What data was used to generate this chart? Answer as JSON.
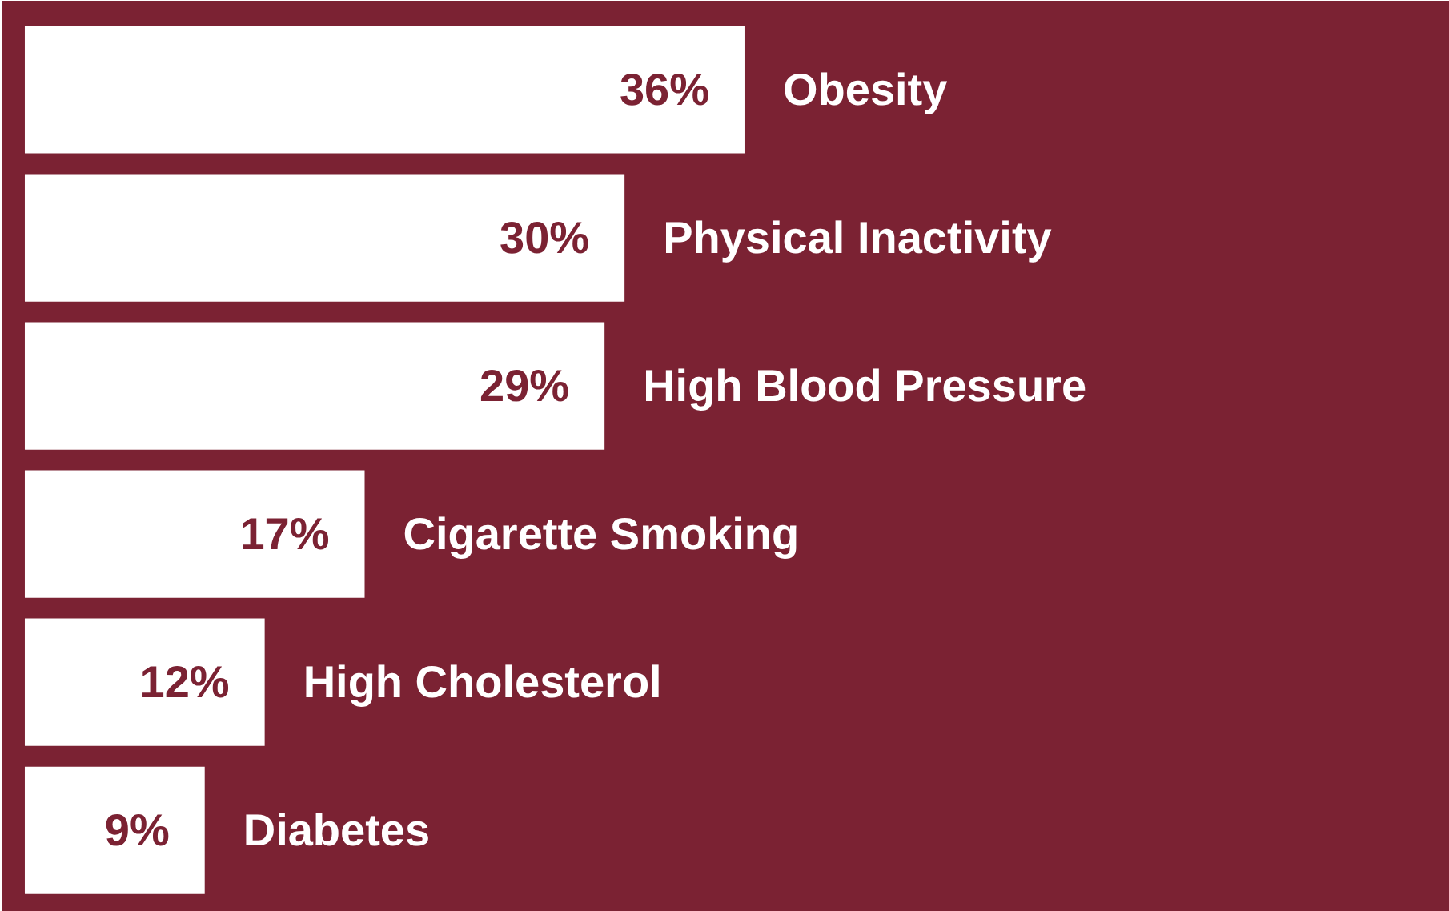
{
  "chart_data": {
    "type": "bar",
    "orientation": "horizontal",
    "categories": [
      "Obesity",
      "Physical Inactivity",
      "High Blood Pressure",
      "Cigarette Smoking",
      "High Cholesterol",
      "Diabetes"
    ],
    "values": [
      36,
      30,
      29,
      17,
      12,
      9
    ],
    "value_labels": [
      "36%",
      "30%",
      "29%",
      "17%",
      "12%",
      "9%"
    ],
    "color": "#ffffff"
  }
}
